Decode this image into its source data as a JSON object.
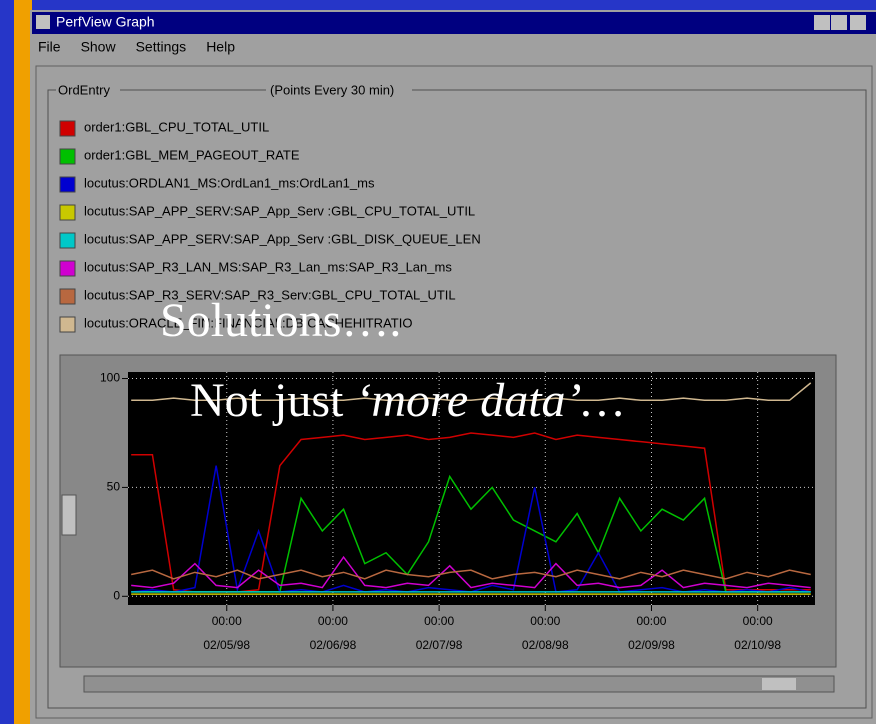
{
  "window": {
    "title": "PerfView Graph",
    "menu": [
      "File",
      "Show",
      "Settings",
      "Help"
    ],
    "group_label": "OrdEntry",
    "note": "(Points Every 30 min)"
  },
  "overlay": {
    "line1": "Solutions….",
    "line2_plain": "Not just ",
    "line2_italic": "‘more data’…"
  },
  "chart_data": {
    "type": "line",
    "x": [
      4.1,
      4.3,
      4.5,
      4.7,
      4.9,
      5.1,
      5.3,
      5.5,
      5.7,
      5.9,
      6.1,
      6.3,
      6.5,
      6.7,
      6.9,
      7.1,
      7.3,
      7.5,
      7.7,
      7.9,
      8.1,
      8.3,
      8.5,
      8.7,
      8.9,
      9.1,
      9.3,
      9.5,
      9.7,
      9.9,
      10.1,
      10.3,
      10.5
    ],
    "xlim": [
      4.07,
      10.54
    ],
    "xticks": [
      {
        "value": 5,
        "label": "00:00",
        "date": "02/05/98"
      },
      {
        "value": 6,
        "label": "00:00",
        "date": "02/06/98"
      },
      {
        "value": 7,
        "label": "00:00",
        "date": "02/07/98"
      },
      {
        "value": 8,
        "label": "00:00",
        "date": "02/08/98"
      },
      {
        "value": 9,
        "label": "00:00",
        "date": "02/09/98"
      },
      {
        "value": 10,
        "label": "00:00",
        "date": "02/10/98"
      }
    ],
    "ylim": [
      -4,
      103
    ],
    "yticks": [
      0,
      50,
      100
    ],
    "grid": true,
    "series": [
      {
        "name": "order1:GBL_CPU_TOTAL_UTIL",
        "color": "#d00000",
        "values": [
          65,
          65,
          3,
          2,
          2,
          2,
          3,
          60,
          72,
          73,
          74,
          72,
          73,
          74,
          72,
          73,
          75,
          74,
          73,
          75,
          72,
          74,
          73,
          72,
          71,
          70,
          69,
          68,
          3,
          3,
          3,
          3,
          3
        ]
      },
      {
        "name": "order1:GBL_MEM_PAGEOUT_RATE",
        "color": "#00c000",
        "values": [
          2,
          2,
          2,
          2,
          2,
          2,
          2,
          2,
          45,
          30,
          40,
          15,
          20,
          10,
          25,
          55,
          40,
          50,
          35,
          30,
          25,
          38,
          20,
          45,
          30,
          40,
          35,
          45,
          2,
          2,
          2,
          2,
          2
        ]
      },
      {
        "name": "locutus:ORDLAN1_MS:OrdLan1_ms:OrdLan1_ms",
        "color": "#0000d0",
        "values": [
          2,
          3,
          2,
          4,
          60,
          3,
          30,
          2,
          3,
          2,
          5,
          2,
          3,
          2,
          4,
          3,
          2,
          5,
          3,
          50,
          2,
          3,
          20,
          2,
          3,
          4,
          2,
          3,
          2,
          3,
          2,
          4,
          2
        ]
      },
      {
        "name": "locutus:SAP_APP_SERV:SAP_App_Serv :GBL_CPU_TOTAL_UTIL",
        "color": "#c8c800",
        "values": [
          1,
          1,
          1,
          1,
          1,
          1,
          1,
          1,
          1,
          1,
          1,
          1,
          1,
          1,
          1,
          1,
          1,
          1,
          1,
          1,
          1,
          1,
          1,
          1,
          1,
          1,
          1,
          1,
          1,
          1,
          1,
          1,
          1
        ]
      },
      {
        "name": "locutus:SAP_APP_SERV:SAP_App_Serv :GBL_DISK_QUEUE_LEN",
        "color": "#00c8c8",
        "values": [
          2,
          2,
          2,
          2,
          2,
          2,
          2,
          2,
          2,
          2,
          2,
          2,
          2,
          2,
          2,
          2,
          2,
          2,
          2,
          2,
          2,
          2,
          2,
          2,
          2,
          2,
          2,
          2,
          2,
          2,
          2,
          2,
          2
        ]
      },
      {
        "name": "locutus:SAP_R3_LAN_MS:SAP_R3_Lan_ms:SAP_R3_Lan_ms",
        "color": "#d000d0",
        "values": [
          5,
          4,
          6,
          15,
          5,
          4,
          12,
          5,
          6,
          4,
          18,
          5,
          4,
          6,
          5,
          14,
          4,
          6,
          5,
          4,
          15,
          5,
          6,
          4,
          5,
          12,
          4,
          6,
          5,
          4,
          6,
          5,
          4
        ]
      },
      {
        "name": "locutus:SAP_R3_SERV:SAP_R3_Serv:GBL_CPU_TOTAL_UTIL",
        "color": "#b86840",
        "values": [
          10,
          12,
          8,
          11,
          9,
          12,
          8,
          10,
          12,
          9,
          11,
          8,
          12,
          10,
          9,
          11,
          12,
          8,
          10,
          11,
          9,
          12,
          10,
          8,
          11,
          9,
          12,
          10,
          8,
          11,
          9,
          12,
          10
        ]
      },
      {
        "name": "locutus:ORACLE_FIN:FINANCIAL:DB:CACHEHITRATIO",
        "color": "#d0b890",
        "values": [
          90,
          90,
          91,
          90,
          90,
          91,
          90,
          90,
          91,
          90,
          90,
          91,
          90,
          90,
          91,
          90,
          90,
          91,
          90,
          90,
          91,
          90,
          90,
          91,
          90,
          90,
          91,
          90,
          90,
          91,
          90,
          90,
          98
        ]
      }
    ]
  }
}
